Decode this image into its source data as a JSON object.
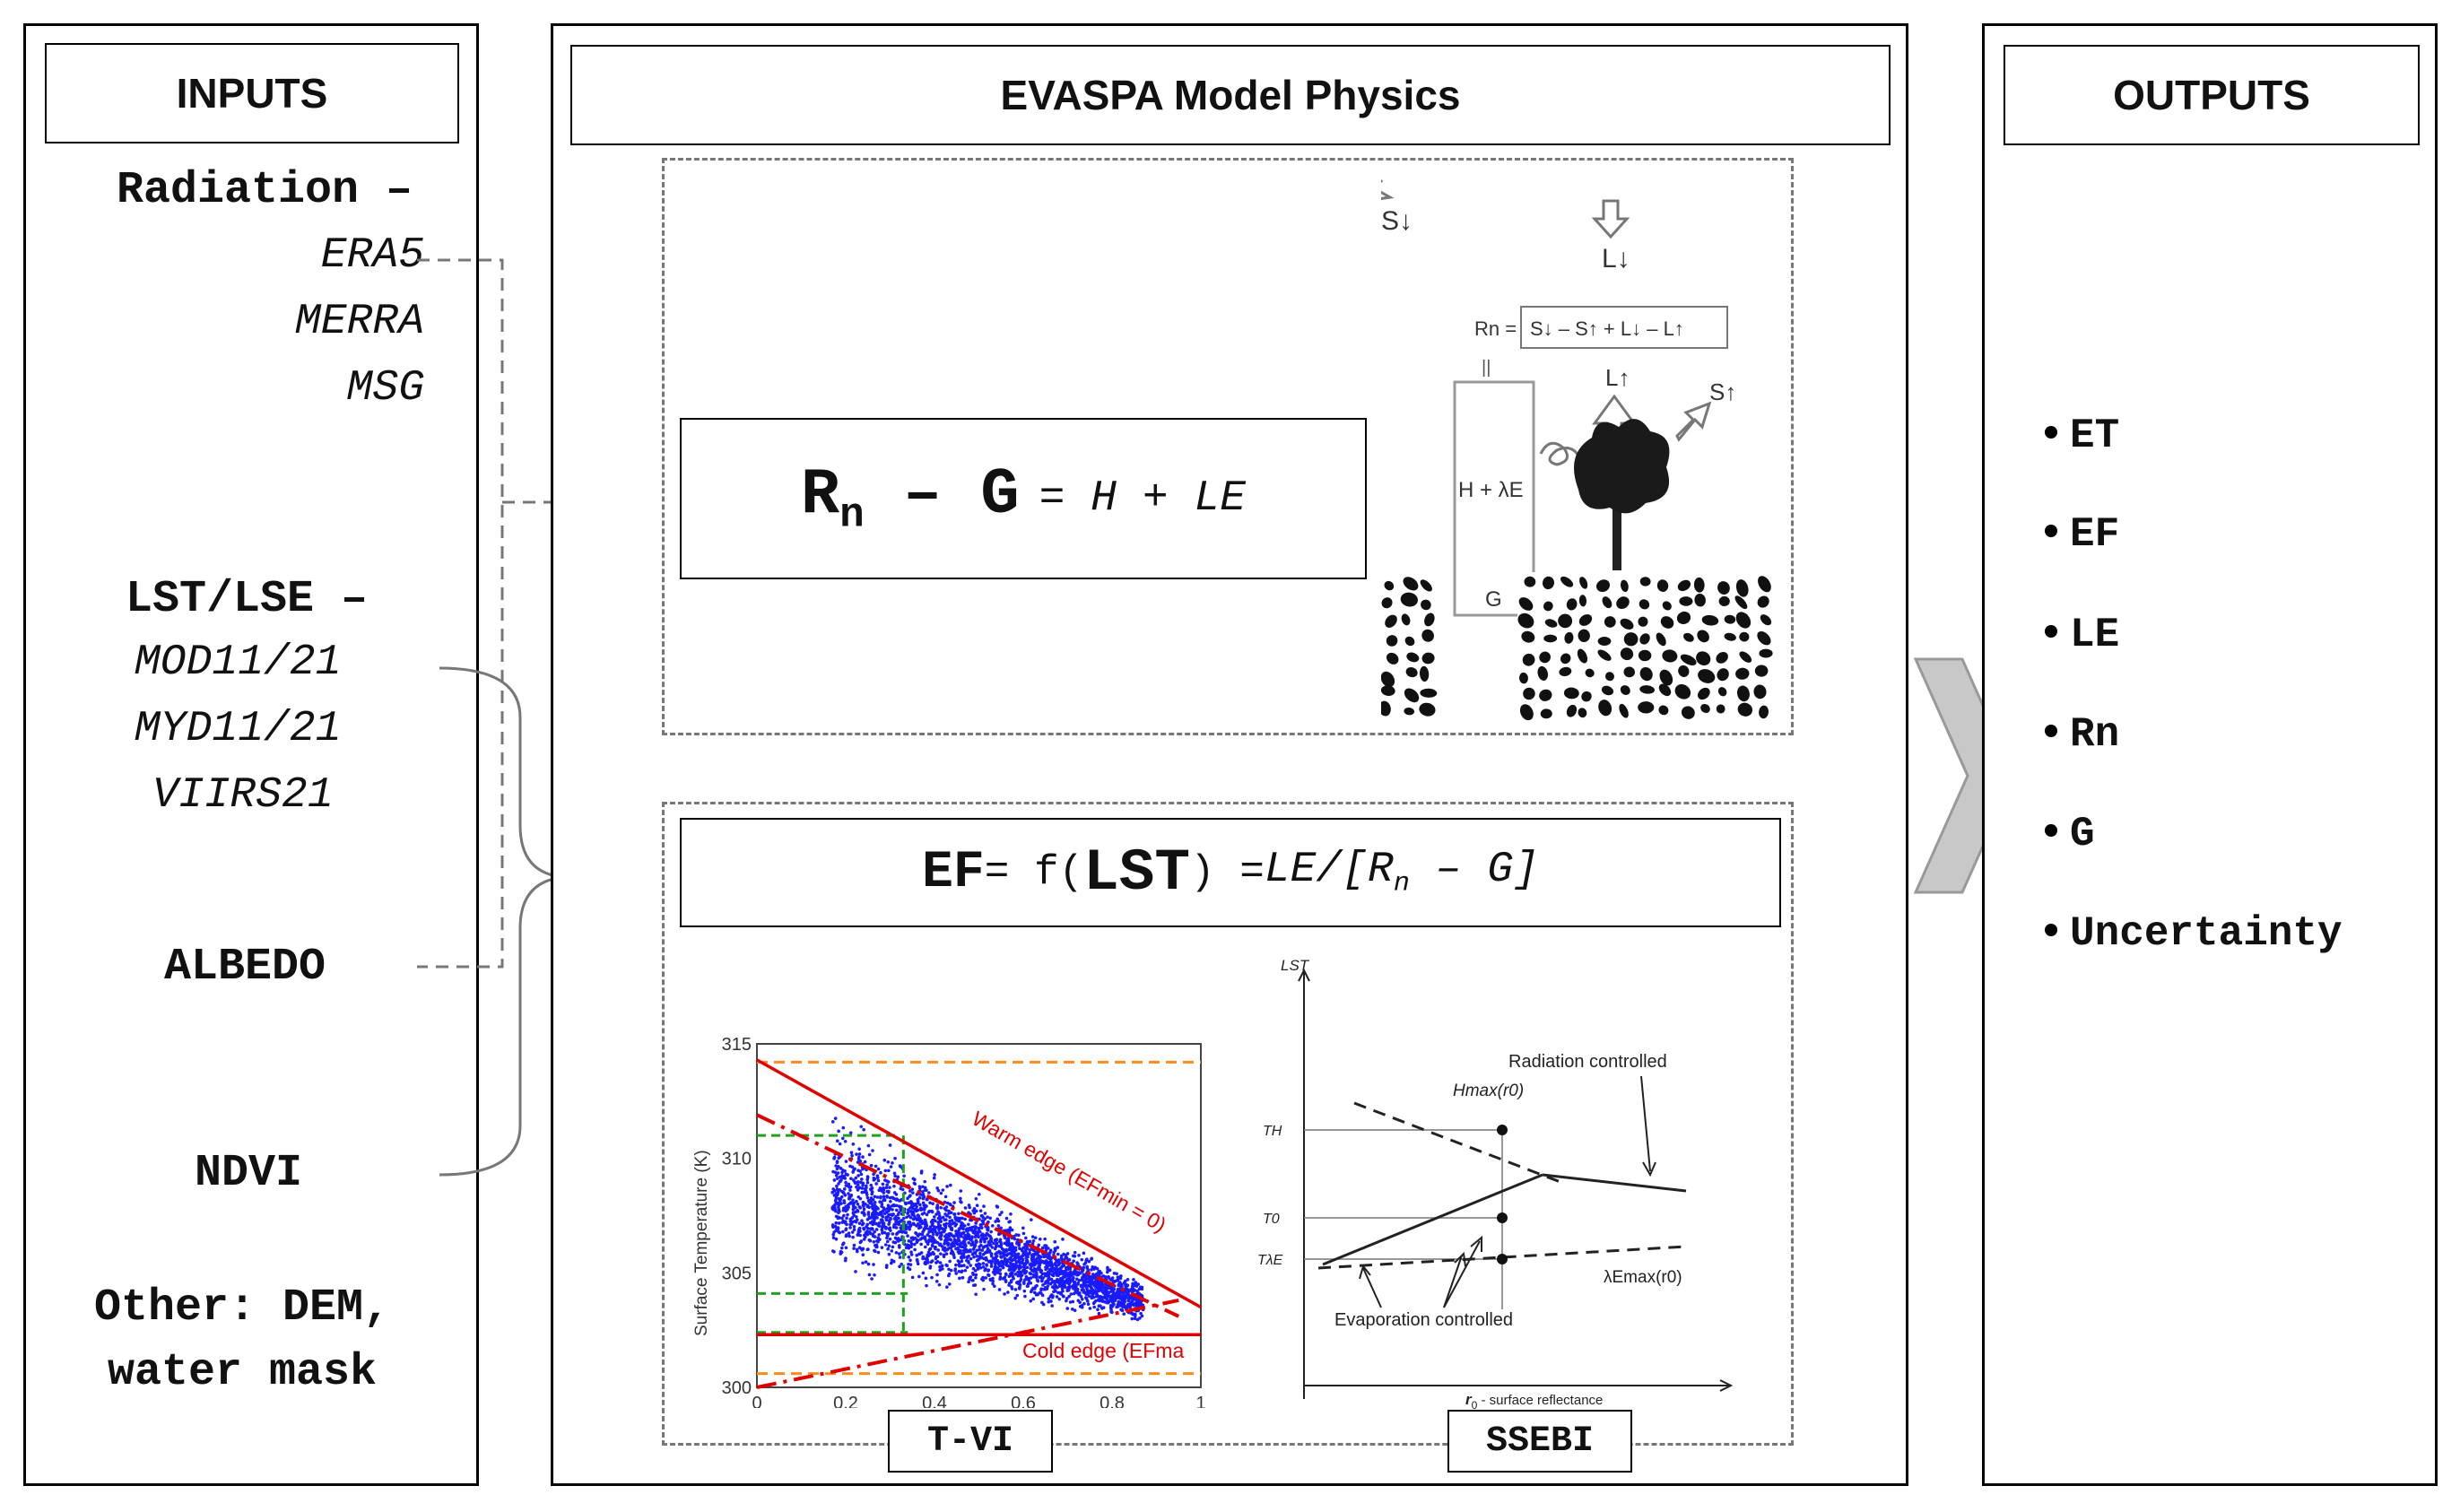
{
  "inputs": {
    "title": "INPUTS",
    "radiation": {
      "label": "Radiation –",
      "sources": [
        "ERA5",
        "MERRA",
        "MSG"
      ]
    },
    "lst": {
      "label": "LST/LSE –",
      "sources": [
        "MOD11/21",
        "MYD11/21",
        "VIIRS21"
      ]
    },
    "albedo": "ALBEDO",
    "ndvi": "NDVI",
    "other_line1": "Other: DEM,",
    "other_line2": "water mask"
  },
  "physics": {
    "title": "EVASPA Model Physics",
    "energy_balance": {
      "rn_r": "R",
      "rn_sub": "n",
      "minus_g": " – G",
      "rhs": "= H + LE"
    },
    "schematic": {
      "s_down": "S↓",
      "l_down": "L↓",
      "l_up": "L↑",
      "s_up": "S↑",
      "rn_eq_lhs": "Rn =",
      "rn_eq": "S↓ – S↑ + L↓ – L↑",
      "h_le": "H + λE",
      "g": "G"
    },
    "ef": {
      "ef": "EF",
      "eq1": " = f(",
      "lst": "LST",
      "eq2": ") = ",
      "rhs_a": "LE/[R",
      "rhs_sub": "n",
      "rhs_b": " – G]"
    },
    "tvi_label": "T-VI",
    "ssebi_label": "SSEBI"
  },
  "outputs": {
    "title": "OUTPUTS",
    "items": [
      "ET",
      "EF",
      "LE",
      "Rn",
      "G",
      "Uncertainty"
    ]
  },
  "chart_data": [
    {
      "type": "scatter",
      "name": "T-VI",
      "ylabel": "Surface Temperature (K)",
      "xlim": [
        0,
        1
      ],
      "ylim": [
        300,
        315
      ],
      "x_ticks": [
        0,
        0.2,
        0.4,
        0.6,
        0.8,
        1
      ],
      "y_ticks": [
        300,
        305,
        310,
        315
      ],
      "annotations": [
        "Warm edge (EFmin = 0)",
        "Cold edge (EFma"
      ],
      "warm_edge": [
        [
          0,
          314.3
        ],
        [
          1,
          303.5
        ]
      ],
      "cold_edge": [
        [
          0,
          302.3
        ],
        [
          1,
          302.3
        ]
      ],
      "point_cloud": {
        "x_range": [
          0.17,
          0.87
        ],
        "y_range": [
          302,
          313
        ],
        "color": "#1a1aff"
      },
      "colors": {
        "points": "#1a1aff",
        "edges": "#e00000",
        "bounds": "#ff8c1a",
        "guides": "#20a020"
      }
    },
    {
      "type": "line",
      "name": "SSEBI",
      "ylabel": "LST",
      "xlabel_symbol": "r",
      "xlabel_sub": "0",
      "xlabel_text": " - surface reflectance",
      "y_ticks": [
        "TH",
        "T0",
        "TλE"
      ],
      "annotations": {
        "radiation": "Radiation controlled",
        "hmax": "Hmax(r0)",
        "lemax": "λEmax(r0)",
        "evaporation": "Evaporation controlled"
      }
    }
  ]
}
